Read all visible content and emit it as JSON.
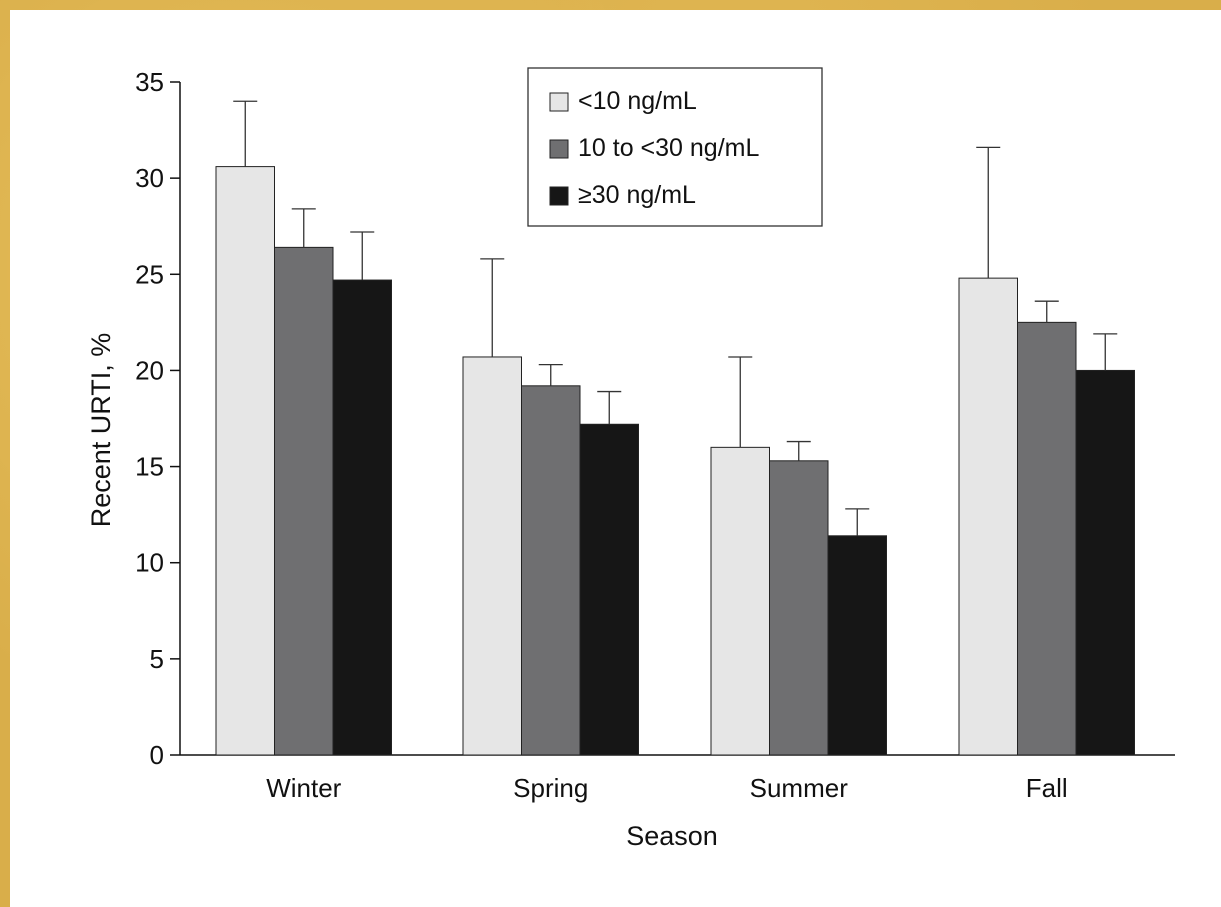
{
  "chart_data": {
    "type": "bar",
    "title": "",
    "xlabel": "Season",
    "ylabel": "Recent URTI, %",
    "categories": [
      "Winter",
      "Spring",
      "Summer",
      "Fall"
    ],
    "ylim": [
      0,
      35
    ],
    "yticks": [
      0,
      5,
      10,
      15,
      20,
      25,
      30,
      35
    ],
    "series": [
      {
        "name": "<10 ng/mL",
        "color": "#e6e6e6",
        "values": [
          30.6,
          20.7,
          16.0,
          24.8
        ],
        "error_upper": [
          34.0,
          25.8,
          20.7,
          31.6
        ]
      },
      {
        "name": "10 to <30 ng/mL",
        "color": "#6f6f71",
        "values": [
          26.4,
          19.2,
          15.3,
          22.5
        ],
        "error_upper": [
          28.4,
          20.3,
          16.3,
          23.6
        ]
      },
      {
        "name": "≥30 ng/mL",
        "color": "#161616",
        "values": [
          24.7,
          17.2,
          11.4,
          20.0
        ],
        "error_upper": [
          27.2,
          18.9,
          12.8,
          21.9
        ]
      }
    ],
    "legend_position": "top-center",
    "grid": false
  }
}
